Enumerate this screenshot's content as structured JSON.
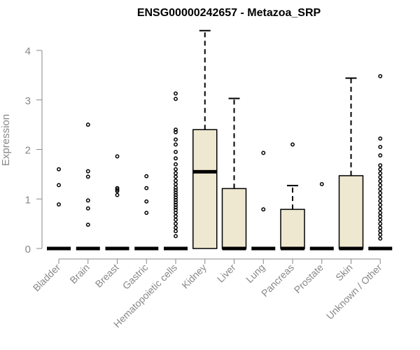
{
  "chart_data": {
    "type": "box",
    "title": "ENSG00000242657 - Metazoa_SRP",
    "xlabel": "",
    "ylabel": "Expression",
    "ylim": [
      0,
      4.5
    ],
    "yticks": [
      0,
      1,
      2,
      3,
      4
    ],
    "ytick_labels": [
      "0",
      "1",
      "2",
      "3",
      "4"
    ],
    "box_fill": "#efe8d0",
    "box_stroke": "#000000",
    "axis_color": "#888888",
    "categories": [
      "Bladder",
      "Brain",
      "Breast",
      "Gastric",
      "Hematopoietic cells",
      "Kidney",
      "Liver",
      "Lung",
      "Pancreas",
      "Prostate",
      "Skin",
      "Unknown / Other"
    ],
    "boxes": [
      {
        "name": "Bladder",
        "q1": 0,
        "median": 0,
        "q3": 0,
        "whisker_low": 0,
        "whisker_high": 0,
        "outliers": [
          0.89,
          1.28,
          1.6
        ]
      },
      {
        "name": "Brain",
        "q1": 0,
        "median": 0,
        "q3": 0,
        "whisker_low": 0,
        "whisker_high": 0,
        "outliers": [
          0.48,
          0.81,
          0.97,
          1.45,
          1.56,
          2.5
        ]
      },
      {
        "name": "Breast",
        "q1": 0,
        "median": 0,
        "q3": 0,
        "whisker_low": 0,
        "whisker_high": 0,
        "outliers": [
          1.08,
          1.16,
          1.19,
          1.22,
          1.86
        ]
      },
      {
        "name": "Gastric",
        "q1": 0,
        "median": 0,
        "q3": 0,
        "whisker_low": 0,
        "whisker_high": 0,
        "outliers": [
          0.72,
          0.95,
          1.22,
          1.46
        ]
      },
      {
        "name": "Hematopoietic cells",
        "q1": 0,
        "median": 0,
        "q3": 0,
        "whisker_low": 0,
        "whisker_high": 0,
        "outliers": [
          0.25,
          0.35,
          0.42,
          0.5,
          0.58,
          0.65,
          0.72,
          0.78,
          0.83,
          0.88,
          0.93,
          0.98,
          1.03,
          1.08,
          1.13,
          1.18,
          1.23,
          1.3,
          1.37,
          1.45,
          1.52,
          1.6,
          1.7,
          1.82,
          1.95,
          2.1,
          2.2,
          2.35,
          2.4,
          3.02,
          3.13
        ]
      },
      {
        "name": "Kidney",
        "q1": 0,
        "median": 1.55,
        "q3": 2.4,
        "whisker_low": 0,
        "whisker_high": 4.4,
        "outliers": []
      },
      {
        "name": "Liver",
        "q1": 0,
        "median": 0,
        "q3": 1.21,
        "whisker_low": 0,
        "whisker_high": 3.03,
        "outliers": []
      },
      {
        "name": "Lung",
        "q1": 0,
        "median": 0,
        "q3": 0,
        "whisker_low": 0,
        "whisker_high": 0,
        "outliers": [
          0.79,
          1.93
        ]
      },
      {
        "name": "Pancreas",
        "q1": 0,
        "median": 0,
        "q3": 0.79,
        "whisker_low": 0,
        "whisker_high": 1.27,
        "outliers": [
          2.1
        ]
      },
      {
        "name": "Prostate",
        "q1": 0,
        "median": 0,
        "q3": 0,
        "whisker_low": 0,
        "whisker_high": 0,
        "outliers": [
          1.3
        ]
      },
      {
        "name": "Skin",
        "q1": 0,
        "median": 0,
        "q3": 1.47,
        "whisker_low": 0,
        "whisker_high": 3.44,
        "outliers": []
      },
      {
        "name": "Unknown / Other",
        "q1": 0,
        "median": 0,
        "q3": 0,
        "whisker_low": 0,
        "whisker_high": 0,
        "outliers": [
          0.2,
          0.28,
          0.35,
          0.42,
          0.5,
          0.58,
          0.65,
          0.72,
          0.8,
          0.88,
          0.96,
          1.04,
          1.12,
          1.2,
          1.28,
          1.36,
          1.44,
          1.52,
          1.6,
          1.68,
          1.88,
          2.05,
          2.22,
          3.48
        ]
      }
    ]
  }
}
